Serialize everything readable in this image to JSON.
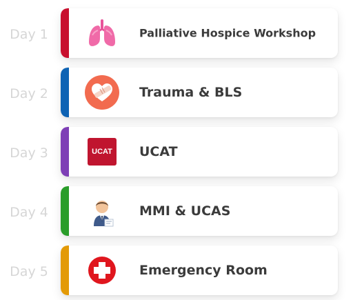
{
  "schedule": [
    {
      "day": "Day 1",
      "title": "Palliative Hospice Workshop",
      "accent": "#c8102e",
      "icon": "lungs-icon"
    },
    {
      "day": "Day 2",
      "title": "Trauma & BLS",
      "accent": "#0e63b4",
      "icon": "bandaged-heart-icon"
    },
    {
      "day": "Day 3",
      "title": "UCAT",
      "accent": "#7e3fb6",
      "icon": "ucat-logo-icon",
      "logo_text": "UCAT"
    },
    {
      "day": "Day 4",
      "title": "MMI & UCAS",
      "accent": "#2a9d2a",
      "icon": "interviewer-icon"
    },
    {
      "day": "Day 5",
      "title": "Emergency Room",
      "accent": "#e39a07",
      "icon": "medical-cross-icon"
    }
  ]
}
